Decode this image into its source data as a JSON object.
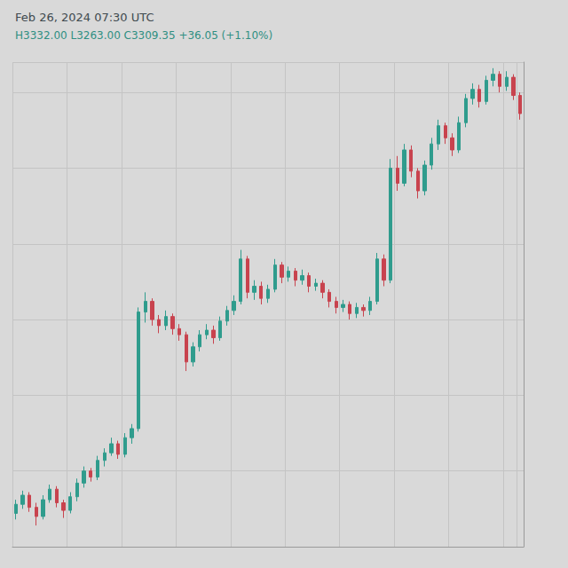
{
  "chart_data": {
    "type": "candlestick",
    "title": "Feb 26, 2024 07:30 UTC",
    "subtitle": "H3332.00 L3263.00 C3309.35 +36.05 (+1.10%)",
    "categories": [
      null,
      null,
      null,
      null,
      null,
      null,
      null,
      null,
      null,
      null,
      null,
      null,
      null,
      null,
      null,
      null,
      null,
      null,
      null,
      null,
      null,
      null,
      null,
      null,
      null,
      null,
      null,
      null,
      null,
      null,
      null,
      null,
      null,
      null,
      null,
      null,
      null,
      null,
      null,
      null,
      null,
      null,
      null,
      null,
      null,
      null,
      null,
      null,
      null,
      null,
      null,
      null,
      null,
      null,
      null,
      null,
      null,
      null,
      null,
      null,
      null,
      null,
      null,
      null,
      null,
      null,
      null,
      null,
      null,
      null,
      null,
      null,
      null,
      null,
      null
    ],
    "values": [
      [
        3122,
        3128,
        3118,
        3131
      ],
      [
        3128,
        3134,
        3125,
        3137
      ],
      [
        3134,
        3126,
        3123,
        3136
      ],
      [
        3126,
        3120,
        3114,
        3129
      ],
      [
        3120,
        3131,
        3118,
        3134
      ],
      [
        3131,
        3138,
        3129,
        3141
      ],
      [
        3138,
        3129,
        3126,
        3140
      ],
      [
        3129,
        3124,
        3119,
        3131
      ],
      [
        3124,
        3133,
        3122,
        3136
      ],
      [
        3133,
        3142,
        3130,
        3145
      ],
      [
        3142,
        3150,
        3139,
        3153
      ],
      [
        3150,
        3146,
        3143,
        3152
      ],
      [
        3146,
        3157,
        3144,
        3160
      ],
      [
        3157,
        3162,
        3153,
        3165
      ],
      [
        3162,
        3168,
        3160,
        3172
      ],
      [
        3168,
        3161,
        3158,
        3170
      ],
      [
        3161,
        3172,
        3159,
        3175
      ],
      [
        3172,
        3178,
        3168,
        3181
      ],
      [
        3178,
        3255,
        3176,
        3258
      ],
      [
        3255,
        3262,
        3248,
        3268
      ],
      [
        3262,
        3250,
        3246,
        3264
      ],
      [
        3250,
        3246,
        3241,
        3253
      ],
      [
        3246,
        3252,
        3243,
        3256
      ],
      [
        3252,
        3244,
        3240,
        3254
      ],
      [
        3244,
        3240,
        3236,
        3247
      ],
      [
        3240,
        3222,
        3216,
        3242
      ],
      [
        3222,
        3232,
        3219,
        3235
      ],
      [
        3232,
        3240,
        3229,
        3243
      ],
      [
        3240,
        3243,
        3237,
        3247
      ],
      [
        3243,
        3238,
        3234,
        3246
      ],
      [
        3238,
        3249,
        3236,
        3252
      ],
      [
        3249,
        3256,
        3246,
        3259
      ],
      [
        3256,
        3262,
        3253,
        3266
      ],
      [
        3262,
        3290,
        3260,
        3296
      ],
      [
        3290,
        3268,
        3264,
        3292
      ],
      [
        3268,
        3272,
        3263,
        3276
      ],
      [
        3272,
        3264,
        3260,
        3275
      ],
      [
        3264,
        3270,
        3261,
        3273
      ],
      [
        3270,
        3286,
        3268,
        3290
      ],
      [
        3286,
        3278,
        3274,
        3288
      ],
      [
        3278,
        3282,
        3275,
        3285
      ],
      [
        3282,
        3276,
        3272,
        3284
      ],
      [
        3276,
        3279,
        3273,
        3283
      ],
      [
        3279,
        3272,
        3268,
        3281
      ],
      [
        3272,
        3274,
        3269,
        3277
      ],
      [
        3274,
        3268,
        3264,
        3276
      ],
      [
        3268,
        3262,
        3258,
        3270
      ],
      [
        3262,
        3258,
        3254,
        3265
      ],
      [
        3258,
        3260,
        3255,
        3263
      ],
      [
        3260,
        3254,
        3250,
        3262
      ],
      [
        3254,
        3258,
        3251,
        3261
      ],
      [
        3258,
        3256,
        3252,
        3260
      ],
      [
        3256,
        3262,
        3253,
        3265
      ],
      [
        3262,
        3290,
        3260,
        3294
      ],
      [
        3290,
        3276,
        3272,
        3293
      ],
      [
        3276,
        3350,
        3274,
        3356
      ],
      [
        3350,
        3340,
        3335,
        3358
      ],
      [
        3340,
        3362,
        3338,
        3366
      ],
      [
        3362,
        3348,
        3344,
        3365
      ],
      [
        3348,
        3335,
        3330,
        3350
      ],
      [
        3335,
        3352,
        3332,
        3355
      ],
      [
        3352,
        3366,
        3349,
        3370
      ],
      [
        3366,
        3378,
        3362,
        3382
      ],
      [
        3378,
        3370,
        3366,
        3380
      ],
      [
        3370,
        3362,
        3358,
        3373
      ],
      [
        3362,
        3380,
        3360,
        3384
      ],
      [
        3380,
        3396,
        3377,
        3399
      ],
      [
        3396,
        3402,
        3392,
        3406
      ],
      [
        3402,
        3394,
        3390,
        3405
      ],
      [
        3394,
        3408,
        3392,
        3411
      ],
      [
        3408,
        3412,
        3404,
        3416
      ],
      [
        3412,
        3404,
        3400,
        3414
      ],
      [
        3404,
        3410,
        3401,
        3414
      ],
      [
        3410,
        3398,
        3395,
        3412
      ],
      [
        3398,
        3386,
        3382,
        3400
      ]
    ],
    "ylim": [
      3100,
      3420
    ],
    "yticks": [
      3100,
      3150,
      3200,
      3250,
      3300,
      3350,
      3400
    ],
    "grid": true,
    "tick_labels": false
  }
}
